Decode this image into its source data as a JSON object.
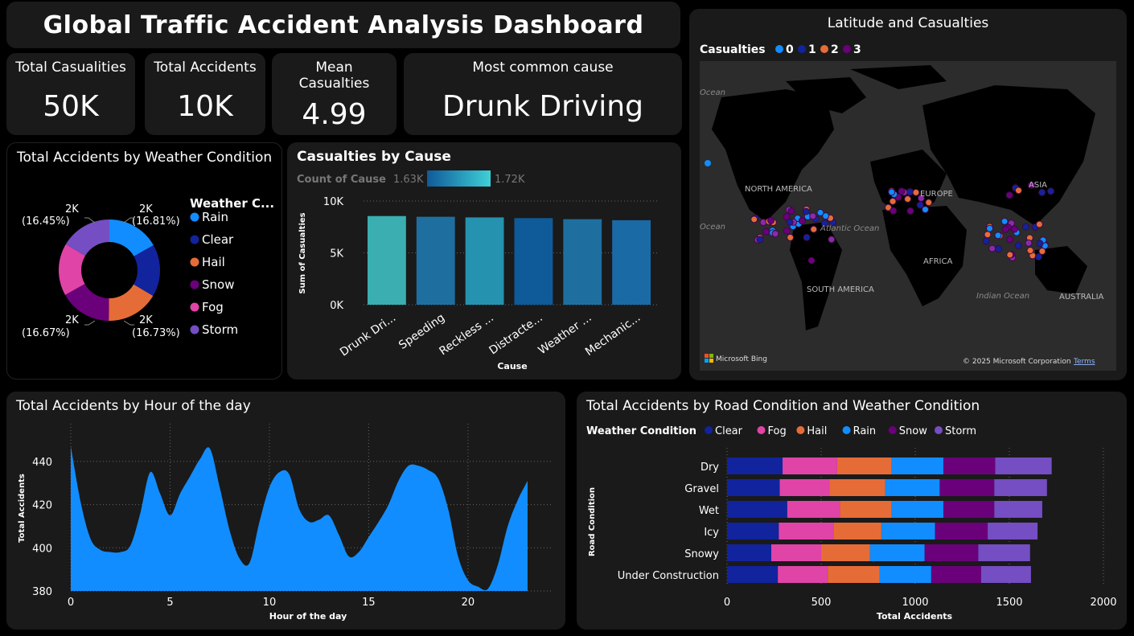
{
  "dashboard_title": "Global Traffic Accident Analysis Dashboard",
  "kpis": {
    "total_casualties": {
      "label": "Total Casualities",
      "value": "50K"
    },
    "total_accidents": {
      "label": "Total Accidents",
      "value": "10K"
    },
    "mean_casualties": {
      "label1": "Mean",
      "label2": "Casualties",
      "value": "4.99"
    },
    "common_cause": {
      "label": "Most common cause",
      "value": "Drunk Driving"
    }
  },
  "colors": {
    "rain": "#118dff",
    "clear": "#12239e",
    "hail": "#e66c37",
    "snow": "#6b007b",
    "fog": "#e044a7",
    "storm": "#744ec2",
    "area": "#118dff",
    "panel": "#1a1a1a"
  },
  "charts": [
    {
      "id": "weather_donut",
      "type": "pie",
      "title": "Total Accidents by Weather Condition",
      "legend_title": "Weather C...",
      "slices": [
        {
          "name": "Rain",
          "value": 16.81,
          "color": "#118dff"
        },
        {
          "name": "Clear",
          "value": 16.67,
          "color": "#12239e"
        },
        {
          "name": "Hail",
          "value": 16.73,
          "color": "#e66c37"
        },
        {
          "name": "Snow",
          "value": 16.67,
          "color": "#6b007b"
        },
        {
          "name": "Fog",
          "value": 16.67,
          "color": "#e044a7"
        },
        {
          "name": "Storm",
          "value": 16.45,
          "color": "#744ec2"
        }
      ],
      "labels": [
        {
          "value": "2K",
          "pct": "(16.81%)"
        },
        {
          "value": "2K",
          "pct": "(16.73%)"
        },
        {
          "value": "2K",
          "pct": "(16.67%)"
        },
        {
          "value": "2K",
          "pct": "(16.45%)"
        }
      ]
    },
    {
      "id": "cause_bar",
      "type": "bar",
      "title": "Casualties by Cause",
      "color_legend": {
        "label": "Count of Cause",
        "min": "1.63K",
        "max": "1.72K"
      },
      "xlabel": "Cause",
      "ylabel": "Sum of Casualties",
      "ylim": [
        0,
        10000
      ],
      "yticks": [
        "0K",
        "5K",
        "10K"
      ],
      "categories": [
        "Drunk Dri...",
        "Speeding",
        "Reckless ...",
        "Distracte...",
        "Weather ...",
        "Mechanic..."
      ],
      "values": [
        8550,
        8480,
        8420,
        8350,
        8250,
        8150
      ],
      "bar_colors": [
        "#3aaeb0",
        "#1e6fa0",
        "#2592b0",
        "#0f5a99",
        "#1e6fa0",
        "#1a6aa5"
      ]
    },
    {
      "id": "hour_area",
      "type": "area",
      "title": "Total Accidents by Hour of the day",
      "xlabel": "Hour of the day",
      "ylabel": "Total Accidents",
      "ylim": [
        380,
        450
      ],
      "xticks": [
        0,
        5,
        10,
        15,
        20
      ],
      "yticks": [
        380,
        400,
        420,
        440
      ],
      "x": [
        0,
        0.5,
        1,
        1.5,
        2,
        2.5,
        3,
        3.5,
        4,
        4.5,
        5,
        5.5,
        6,
        6.5,
        7,
        7.5,
        8,
        8.5,
        9,
        9.5,
        10,
        10.5,
        11,
        11.5,
        12,
        12.5,
        13,
        13.5,
        14,
        14.5,
        15,
        15.5,
        16,
        16.5,
        17,
        17.5,
        18,
        18.5,
        19,
        19.5,
        20,
        20.5,
        21,
        21.5,
        22,
        22.5,
        23
      ],
      "values": [
        447,
        421,
        404,
        399,
        398,
        398,
        401,
        416,
        435,
        425,
        415,
        425,
        433,
        441,
        446,
        428,
        408,
        395,
        393,
        412,
        428,
        435,
        434,
        418,
        412,
        413,
        415,
        406,
        396,
        398,
        405,
        412,
        420,
        431,
        438,
        438,
        436,
        432,
        418,
        396,
        385,
        382,
        381,
        392,
        410,
        422,
        431
      ]
    },
    {
      "id": "road_stacked",
      "type": "bar",
      "orientation": "horizontal-stacked",
      "title": "Total Accidents by Road Condition and Weather Condition",
      "legend_title": "Weather Condition",
      "xlabel": "Total Accidents",
      "ylabel": "Road Condition",
      "xlim": [
        0,
        2000
      ],
      "xticks": [
        0,
        500,
        1000,
        1500,
        2000
      ],
      "categories": [
        "Dry",
        "Gravel",
        "Wet",
        "Icy",
        "Snowy",
        "Under Construction"
      ],
      "series": [
        {
          "name": "Clear",
          "color": "#12239e",
          "values": [
            295,
            280,
            320,
            275,
            235,
            270
          ]
        },
        {
          "name": "Fog",
          "color": "#e044a7",
          "values": [
            290,
            265,
            280,
            290,
            265,
            265
          ]
        },
        {
          "name": "Hail",
          "color": "#e66c37",
          "values": [
            290,
            295,
            275,
            255,
            260,
            275
          ]
        },
        {
          "name": "Rain",
          "color": "#118dff",
          "values": [
            275,
            290,
            275,
            285,
            290,
            275
          ]
        },
        {
          "name": "Snow",
          "color": "#6b007b",
          "values": [
            275,
            290,
            270,
            280,
            285,
            265
          ]
        },
        {
          "name": "Storm",
          "color": "#744ec2",
          "values": [
            300,
            280,
            255,
            265,
            275,
            265
          ]
        }
      ]
    }
  ],
  "map": {
    "title": "Latitude and Casualties",
    "legend_title": "Casualties",
    "legend_items": [
      {
        "name": "0",
        "color": "#118dff"
      },
      {
        "name": "1",
        "color": "#12239e"
      },
      {
        "name": "2",
        "color": "#e66c37"
      },
      {
        "name": "3",
        "color": "#6b007b"
      }
    ],
    "labels": {
      "ocean1": "Ocean",
      "ocean2": "Ocean",
      "north_america": "NORTH AMERICA",
      "europe": "EUROPE",
      "asia": "ASIA",
      "atlantic": "Atlantic Ocean",
      "africa": "AFRICA",
      "south_america": "SOUTH AMERICA",
      "indian": "Indian Ocean",
      "australia": "AUSTRALIA"
    },
    "bing": "Microsoft Bing",
    "copyright": "© 2025 Microsoft Corporation",
    "terms": "Terms"
  }
}
